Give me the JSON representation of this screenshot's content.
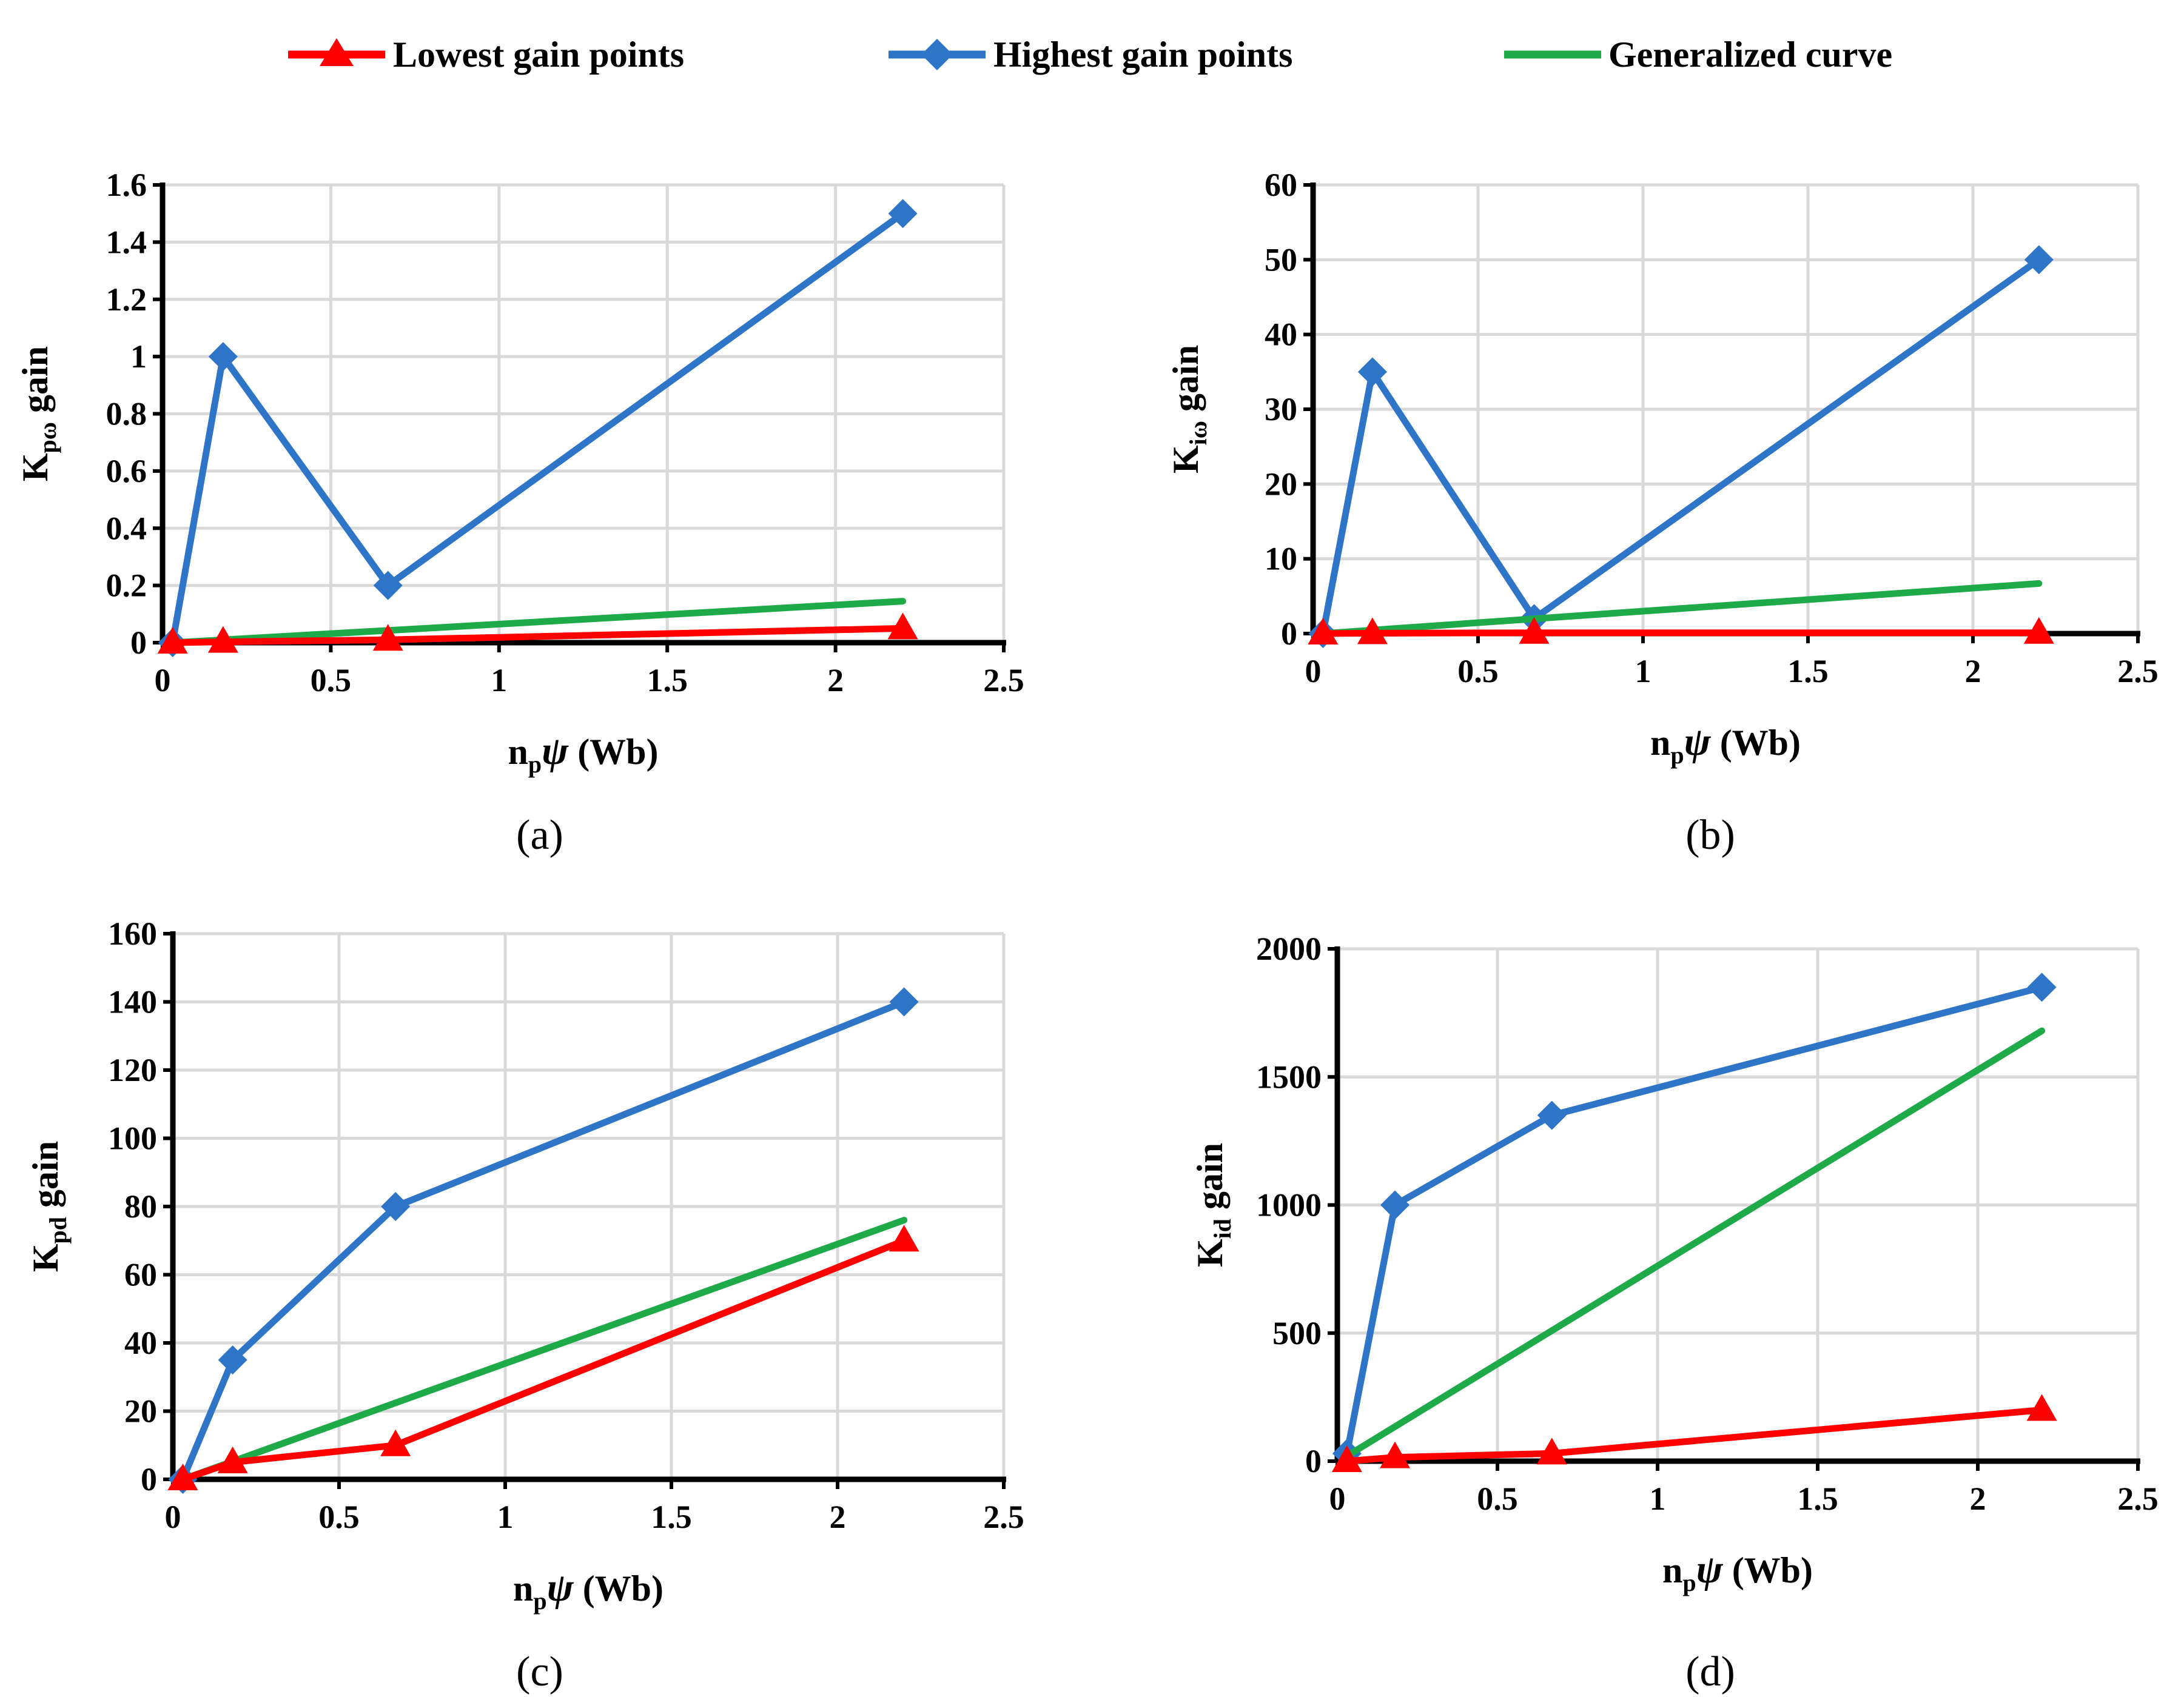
{
  "legend": {
    "lowest": "Lowest gain points",
    "highest": "Highest gain points",
    "general": "Generalized curve"
  },
  "colors": {
    "lowest": "#ff0000",
    "highest": "#2e75c8",
    "general": "#1faa4a"
  },
  "chart_data": [
    {
      "type": "line",
      "panel_label": "(a)",
      "ylabel_main": "K",
      "ylabel_sub": "pω",
      "ylabel_rest": " gain",
      "xlabel_main": "n",
      "xlabel_sub": "p",
      "xlabel_psi": "ψ",
      "xlabel_rest": " (Wb)",
      "xlim": [
        0,
        2.5
      ],
      "ylim": [
        0,
        1.6
      ],
      "x_ticks": [
        "0",
        "0.5",
        "1",
        "1.5",
        "2",
        "2.5"
      ],
      "y_ticks": [
        "0",
        "0.2",
        "0.4",
        "0.6",
        "0.8",
        "1",
        "1.2",
        "1.4",
        "1.6"
      ],
      "series": [
        {
          "name": "Highest gain points",
          "x": [
            0.03,
            0.18,
            0.67,
            2.2
          ],
          "y": [
            0,
            1.0,
            0.2,
            1.5
          ]
        },
        {
          "name": "Generalized curve",
          "x": [
            0.03,
            2.2
          ],
          "y": [
            0.0,
            0.145
          ]
        },
        {
          "name": "Lowest gain points",
          "x": [
            0.03,
            0.18,
            0.67,
            2.2
          ],
          "y": [
            0,
            0.003,
            0.01,
            0.05
          ]
        }
      ]
    },
    {
      "type": "line",
      "panel_label": "(b)",
      "ylabel_main": "K",
      "ylabel_sub": "iω",
      "ylabel_rest": " gain",
      "xlabel_main": "n",
      "xlabel_sub": "p",
      "xlabel_psi": "ψ",
      "xlabel_rest": " (Wb)",
      "xlim": [
        0,
        2.5
      ],
      "ylim": [
        0,
        60
      ],
      "x_ticks": [
        "0",
        "0.5",
        "1",
        "1.5",
        "2",
        "2.5"
      ],
      "y_ticks": [
        "0",
        "10",
        "20",
        "30",
        "40",
        "50",
        "60"
      ],
      "series": [
        {
          "name": "Highest gain points",
          "x": [
            0.03,
            0.18,
            0.67,
            2.2
          ],
          "y": [
            0,
            35,
            2,
            50
          ]
        },
        {
          "name": "Generalized curve",
          "x": [
            0.03,
            2.2
          ],
          "y": [
            0.0,
            6.7
          ]
        },
        {
          "name": "Lowest gain points",
          "x": [
            0.03,
            0.18,
            0.67,
            2.2
          ],
          "y": [
            0,
            0.05,
            0.1,
            0.1
          ]
        }
      ]
    },
    {
      "type": "line",
      "panel_label": "(c)",
      "ylabel_main": "K",
      "ylabel_sub": "pd",
      "ylabel_rest": " gain",
      "xlabel_main": "n",
      "xlabel_sub": "p",
      "xlabel_psi": "ψ",
      "xlabel_rest": " (Wb)",
      "xlim": [
        0,
        2.5
      ],
      "ylim": [
        0,
        160
      ],
      "x_ticks": [
        "0",
        "0.5",
        "1",
        "1.5",
        "2",
        "2.5"
      ],
      "y_ticks": [
        "0",
        "20",
        "40",
        "60",
        "80",
        "100",
        "120",
        "140",
        "160"
      ],
      "series": [
        {
          "name": "Highest gain points",
          "x": [
            0.03,
            0.18,
            0.67,
            2.2
          ],
          "y": [
            0,
            35,
            80,
            140
          ]
        },
        {
          "name": "Generalized curve",
          "x": [
            0.03,
            2.2
          ],
          "y": [
            0.0,
            76
          ]
        },
        {
          "name": "Lowest gain points",
          "x": [
            0.03,
            0.18,
            0.67,
            2.2
          ],
          "y": [
            0,
            5,
            10,
            70
          ]
        }
      ]
    },
    {
      "type": "line",
      "panel_label": "(d)",
      "ylabel_main": "K",
      "ylabel_sub": "id",
      "ylabel_rest": " gain",
      "xlabel_main": "n",
      "xlabel_sub": "p",
      "xlabel_psi": "ψ",
      "xlabel_rest": " (Wb)",
      "xlim": [
        0,
        2.5
      ],
      "ylim": [
        0,
        2000
      ],
      "x_ticks": [
        "0",
        "0.5",
        "1",
        "1.5",
        "2",
        "2.5"
      ],
      "y_ticks": [
        "0",
        "500",
        "1000",
        "1500",
        "2000"
      ],
      "series": [
        {
          "name": "Highest gain points",
          "x": [
            0.03,
            0.18,
            0.67,
            2.2
          ],
          "y": [
            30,
            1000,
            1350,
            1850
          ]
        },
        {
          "name": "Generalized curve",
          "x": [
            0.03,
            2.2
          ],
          "y": [
            20,
            1680
          ]
        },
        {
          "name": "Lowest gain points",
          "x": [
            0.03,
            0.18,
            0.67,
            2.2
          ],
          "y": [
            0,
            15,
            30,
            200
          ]
        }
      ]
    }
  ]
}
